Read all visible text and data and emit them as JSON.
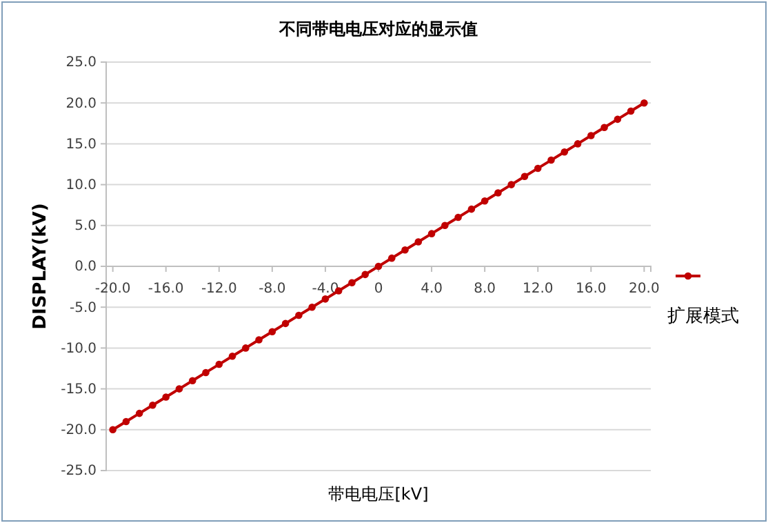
{
  "chart_data": {
    "type": "line",
    "title": "不同带电电压对应的显示值",
    "xlabel": "带电电压[kV]",
    "ylabel": "DISPLAY(kV)",
    "x": [
      -20,
      -19,
      -18,
      -17,
      -16,
      -15,
      -14,
      -13,
      -12,
      -11,
      -10,
      -9,
      -8,
      -7,
      -6,
      -5,
      -4,
      -3,
      -2,
      -1,
      0,
      1,
      2,
      3,
      4,
      5,
      6,
      7,
      8,
      9,
      10,
      11,
      12,
      13,
      14,
      15,
      16,
      17,
      18,
      19,
      20
    ],
    "series": [
      {
        "name": "扩展模式",
        "color": "#c00000",
        "values": [
          -20,
          -19,
          -18,
          -17,
          -16,
          -15,
          -14,
          -13,
          -12,
          -11,
          -10,
          -9,
          -8,
          -7,
          -6,
          -5,
          -4,
          -3,
          -2,
          -1,
          0,
          1,
          2,
          3,
          4,
          5,
          6,
          7,
          8,
          9,
          10,
          11,
          12,
          13,
          14,
          15,
          16,
          17,
          18,
          19,
          20
        ]
      }
    ],
    "xlim": [
      -20.5,
      20.5
    ],
    "xticks": [
      {
        "value": -20,
        "label": "-20.0"
      },
      {
        "value": -16,
        "label": "-16.0"
      },
      {
        "value": -12,
        "label": "-12.0"
      },
      {
        "value": -8,
        "label": "-8.0"
      },
      {
        "value": -4,
        "label": "-4.0"
      },
      0,
      {
        "value": 4,
        "label": "4.0"
      },
      {
        "value": 8,
        "label": "8.0"
      },
      {
        "value": 12,
        "label": "12.0"
      },
      {
        "value": 16,
        "label": "16.0"
      },
      {
        "value": 20,
        "label": "20.0"
      }
    ],
    "ylim": [
      -25,
      25
    ],
    "yticks": [
      {
        "value": -25,
        "label": "-25.0"
      },
      {
        "value": -20,
        "label": "-20.0"
      },
      {
        "value": -15,
        "label": "-15.0"
      },
      {
        "value": -10,
        "label": "-10.0"
      },
      {
        "value": -5,
        "label": "-5.0"
      },
      {
        "value": 0,
        "label": "0.0"
      },
      {
        "value": 5,
        "label": "5.0"
      },
      {
        "value": 10,
        "label": "10.0"
      },
      {
        "value": 15,
        "label": "15.0"
      },
      {
        "value": 20,
        "label": "20.0"
      },
      {
        "value": 25,
        "label": "25.0"
      }
    ],
    "grid": "y",
    "legend": "right",
    "marker": "circle",
    "line_style": "solid"
  }
}
